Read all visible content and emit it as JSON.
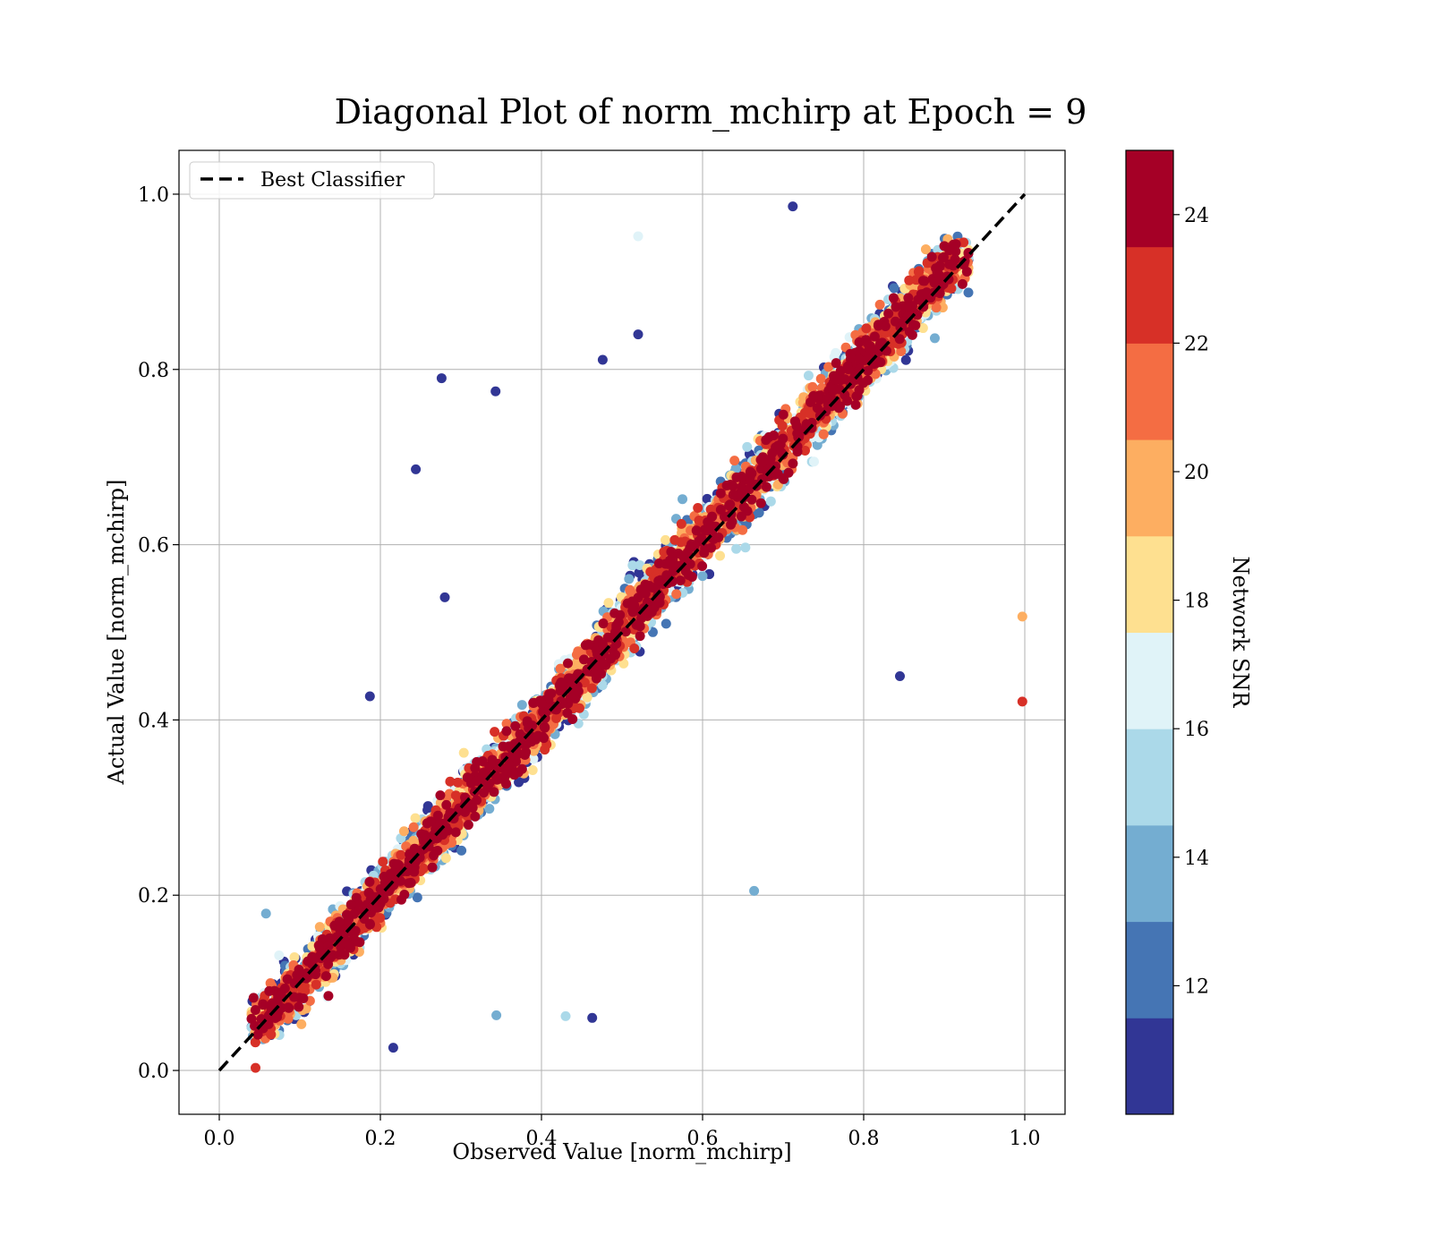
{
  "chart_data": {
    "type": "scatter",
    "title": "Diagonal Plot of norm_mchirp at Epoch = 9",
    "xlabel": "Observed Value [norm_mchirp]",
    "ylabel": "Actual Value [norm_mchirp]",
    "xlim": [
      -0.05,
      1.05
    ],
    "ylim": [
      -0.05,
      1.05
    ],
    "x_ticks": [
      "0.0",
      "0.2",
      "0.4",
      "0.6",
      "0.8",
      "1.0"
    ],
    "y_ticks": [
      "0.0",
      "0.2",
      "0.4",
      "0.6",
      "0.8",
      "1.0"
    ],
    "x_tick_values": [
      0.0,
      0.2,
      0.4,
      0.6,
      0.8,
      1.0
    ],
    "y_tick_values": [
      0.0,
      0.2,
      0.4,
      0.6,
      0.8,
      1.0
    ],
    "grid": true,
    "legend": {
      "placement": "top-left",
      "entries": [
        {
          "label": "Best Classifier",
          "style": "black dashed line"
        }
      ]
    },
    "reference_line": {
      "name": "Best Classifier",
      "x": [
        0,
        1
      ],
      "y": [
        0,
        1
      ]
    },
    "colorbar": {
      "label": "Network SNR",
      "range": [
        10,
        25
      ],
      "ticks": [
        "12",
        "14",
        "16",
        "18",
        "20",
        "22",
        "24"
      ],
      "tick_values": [
        12,
        14,
        16,
        18,
        20,
        22,
        24
      ],
      "colors": [
        "#313695",
        "#4575b4",
        "#74add1",
        "#abd9e9",
        "#e0f3f8",
        "#fee090",
        "#fdae61",
        "#f46d43",
        "#d73027",
        "#a50026"
      ]
    },
    "series": [
      {
        "color_by": "Network SNR",
        "points": [
          {
            "x": 0.276,
            "y": 0.79,
            "snr": 11
          },
          {
            "x": 0.343,
            "y": 0.775,
            "snr": 11
          },
          {
            "x": 0.244,
            "y": 0.686,
            "snr": 11
          },
          {
            "x": 0.476,
            "y": 0.811,
            "snr": 11
          },
          {
            "x": 0.52,
            "y": 0.952,
            "snr": 17
          },
          {
            "x": 0.997,
            "y": 0.518,
            "snr": 20
          },
          {
            "x": 0.997,
            "y": 0.421,
            "snr": 22
          },
          {
            "x": 0.058,
            "y": 0.179,
            "snr": 13
          },
          {
            "x": 0.43,
            "y": 0.062,
            "snr": 15
          },
          {
            "x": 0.463,
            "y": 0.06,
            "snr": 11
          },
          {
            "x": 0.344,
            "y": 0.063,
            "snr": 13
          },
          {
            "x": 0.216,
            "y": 0.026,
            "snr": 11
          },
          {
            "x": 0.664,
            "y": 0.205,
            "snr": 13
          },
          {
            "x": 0.712,
            "y": 0.986,
            "snr": 11
          },
          {
            "x": 0.845,
            "y": 0.45,
            "snr": 11
          },
          {
            "x": 0.187,
            "y": 0.427,
            "snr": 11
          },
          {
            "x": 0.28,
            "y": 0.54,
            "snr": 11
          },
          {
            "x": 0.52,
            "y": 0.84,
            "snr": 11
          },
          {
            "x": 0.045,
            "y": 0.003,
            "snr": 22
          }
        ]
      }
    ]
  }
}
